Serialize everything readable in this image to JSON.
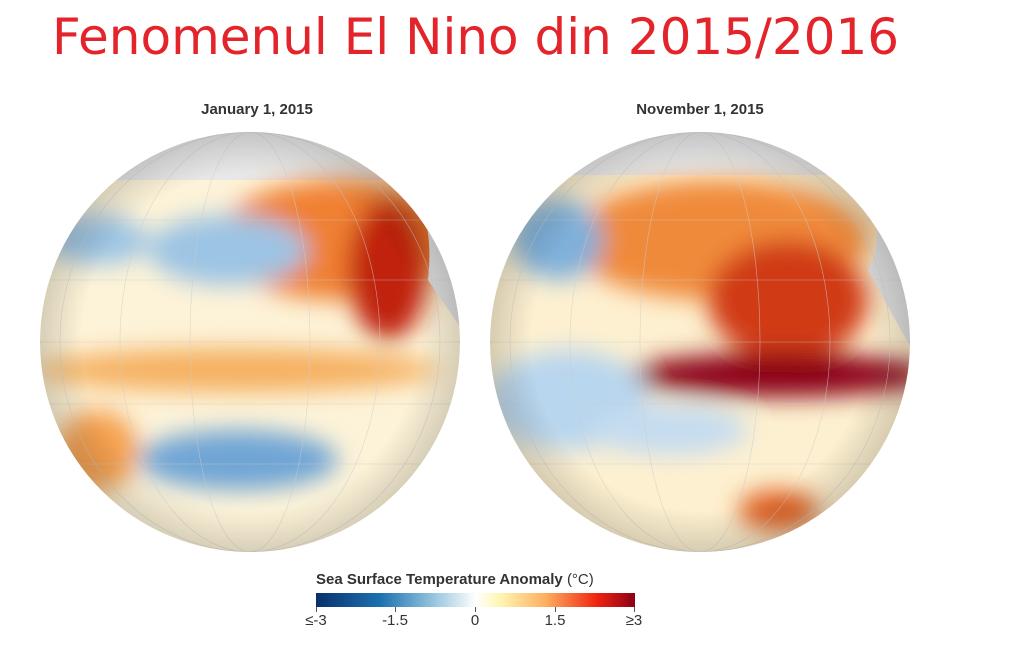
{
  "title": "Fenomenul El Nino din 2015/2016",
  "panels": [
    {
      "date": "January 1, 2015"
    },
    {
      "date": "November 1, 2015"
    }
  ],
  "colorbar": {
    "title": "Sea Surface Temperature Anomaly",
    "unit": "(°C)",
    "ticks": [
      "≤-3",
      "-1.5",
      "0",
      "1.5",
      "≥3"
    ],
    "colors": [
      "#08306b",
      "#1c70b0",
      "#ffffff",
      "#fdae61",
      "#8b0015"
    ]
  }
}
